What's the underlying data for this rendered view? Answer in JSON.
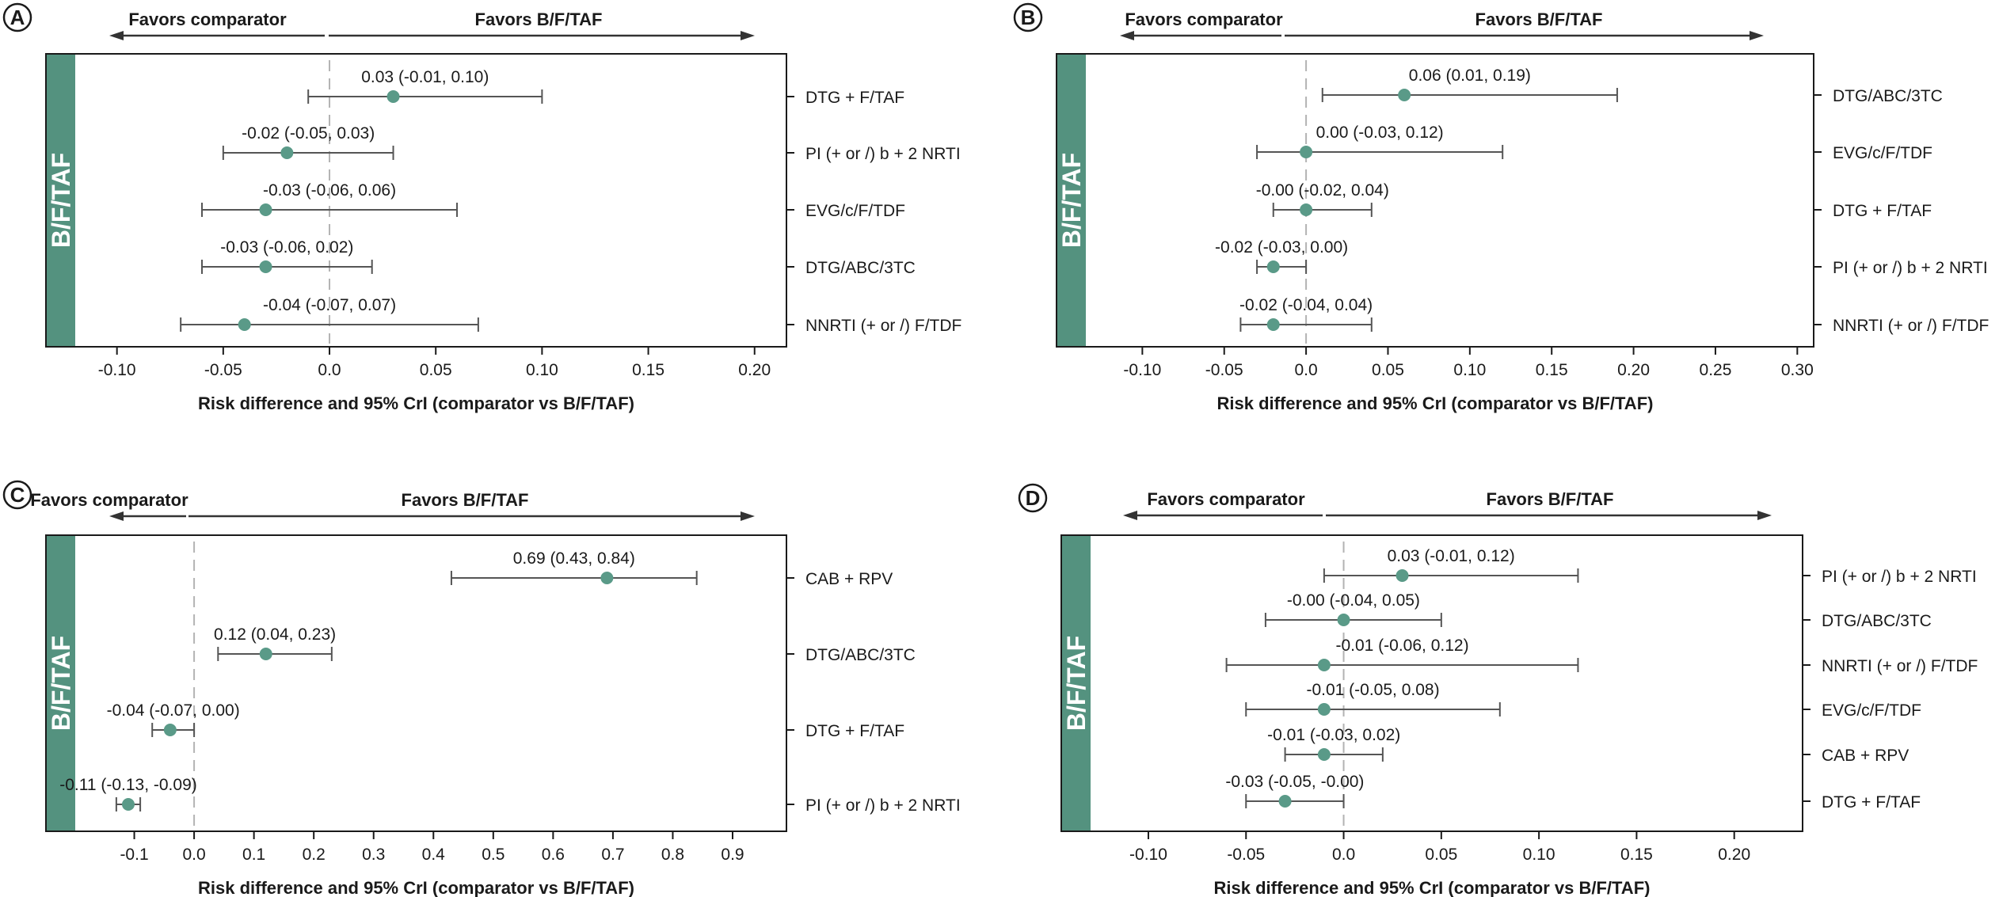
{
  "chart_data": [
    {
      "type": "forest",
      "panel_letter": "A",
      "band_label": "B/F/TAF",
      "xlabel": "Risk difference and 95% CrI (comparator vs B/F/TAF)",
      "left_arrow_label": "Favors comparator",
      "right_arrow_label": "Favors B/F/TAF",
      "xlim": [
        -0.12,
        0.215
      ],
      "ticks": [
        -0.1,
        -0.05,
        0.0,
        0.05,
        0.1,
        0.15,
        0.2
      ],
      "tick_labels": [
        "-0.10",
        "-0.05",
        "0.0",
        "0.05",
        "0.10",
        "0.15",
        "0.20"
      ],
      "rows": [
        {
          "label": "DTG + F/TAF",
          "estimate": 0.03,
          "lower": -0.01,
          "upper": 0.1,
          "text": "0.03 (-0.01, 0.10)"
        },
        {
          "label": "PI (+ or /) b + 2 NRTI",
          "estimate": -0.02,
          "lower": -0.05,
          "upper": 0.03,
          "text": "-0.02 (-0.05, 0.03)"
        },
        {
          "label": "EVG/c/F/TDF",
          "estimate": -0.03,
          "lower": -0.06,
          "upper": 0.06,
          "text": "-0.03 (-0.06, 0.06)"
        },
        {
          "label": "DTG/ABC/3TC",
          "estimate": -0.03,
          "lower": -0.06,
          "upper": 0.02,
          "text": "-0.03 (-0.06, 0.02)"
        },
        {
          "label": "NNRTI (+ or /) F/TDF",
          "estimate": -0.04,
          "lower": -0.07,
          "upper": 0.07,
          "text": "-0.04 (-0.07, 0.07)"
        }
      ]
    },
    {
      "type": "forest",
      "panel_letter": "B",
      "band_label": "B/F/TAF",
      "xlabel": "Risk difference and 95% CrI (comparator vs B/F/TAF)",
      "left_arrow_label": "Favors comparator",
      "right_arrow_label": "Favors B/F/TAF",
      "xlim": [
        -0.135,
        0.31
      ],
      "ticks": [
        -0.1,
        -0.05,
        0.0,
        0.05,
        0.1,
        0.15,
        0.2,
        0.25,
        0.3
      ],
      "tick_labels": [
        "-0.10",
        "-0.05",
        "0.0",
        "0.05",
        "0.10",
        "0.15",
        "0.20",
        "0.25",
        "0.30"
      ],
      "rows": [
        {
          "label": "DTG/ABC/3TC",
          "estimate": 0.06,
          "lower": 0.01,
          "upper": 0.19,
          "text": "0.06 (0.01, 0.19)"
        },
        {
          "label": "EVG/c/F/TDF",
          "estimate": 0.0,
          "lower": -0.03,
          "upper": 0.12,
          "text": "0.00 (-0.03, 0.12)"
        },
        {
          "label": "DTG + F/TAF",
          "estimate": 0.0,
          "lower": -0.02,
          "upper": 0.04,
          "text": "-0.00 (-0.02, 0.04)"
        },
        {
          "label": "PI (+ or /) b + 2 NRTI",
          "estimate": -0.02,
          "lower": -0.03,
          "upper": 0.0,
          "text": "-0.02 (-0.03, 0.00)"
        },
        {
          "label": "NNRTI (+ or /) F/TDF",
          "estimate": -0.02,
          "lower": -0.04,
          "upper": 0.04,
          "text": "-0.02 (-0.04, 0.04)"
        }
      ]
    },
    {
      "type": "forest",
      "panel_letter": "C",
      "band_label": "B/F/TAF",
      "xlabel": "Risk difference and 95% CrI (comparator vs B/F/TAF)",
      "left_arrow_label": "Favors comparator",
      "right_arrow_label": "Favors B/F/TAF",
      "xlim": [
        -0.2,
        0.99
      ],
      "ticks": [
        -0.1,
        0.0,
        0.1,
        0.2,
        0.3,
        0.4,
        0.5,
        0.6,
        0.7,
        0.8,
        0.9
      ],
      "tick_labels": [
        "-0.1",
        "0.0",
        "0.1",
        "0.2",
        "0.3",
        "0.4",
        "0.5",
        "0.6",
        "0.7",
        "0.8",
        "0.9"
      ],
      "rows": [
        {
          "label": "CAB + RPV",
          "estimate": 0.69,
          "lower": 0.43,
          "upper": 0.84,
          "text": "0.69 (0.43, 0.84)"
        },
        {
          "label": "DTG/ABC/3TC",
          "estimate": 0.12,
          "lower": 0.04,
          "upper": 0.23,
          "text": "0.12 (0.04, 0.23)"
        },
        {
          "label": "DTG + F/TAF",
          "estimate": -0.04,
          "lower": -0.07,
          "upper": 0.0,
          "text": "-0.04 (-0.07, 0.00)"
        },
        {
          "label": "PI (+ or /) b + 2 NRTI",
          "estimate": -0.11,
          "lower": -0.13,
          "upper": -0.09,
          "text": "-0.11 (-0.13, -0.09)"
        }
      ]
    },
    {
      "type": "forest",
      "panel_letter": "D",
      "band_label": "B/F/TAF",
      "xlabel": "Risk difference and 95% CrI (comparator vs B/F/TAF)",
      "left_arrow_label": "Favors comparator",
      "right_arrow_label": "Favors B/F/TAF",
      "xlim": [
        -0.13,
        0.235
      ],
      "ticks": [
        -0.1,
        -0.05,
        0.0,
        0.05,
        0.1,
        0.15,
        0.2
      ],
      "tick_labels": [
        "-0.10",
        "-0.05",
        "0.0",
        "0.05",
        "0.10",
        "0.15",
        "0.20"
      ],
      "rows": [
        {
          "label": "PI (+ or /) b + 2 NRTI",
          "estimate": 0.03,
          "lower": -0.01,
          "upper": 0.12,
          "text": "0.03 (-0.01, 0.12)"
        },
        {
          "label": "DTG/ABC/3TC",
          "estimate": 0.0,
          "lower": -0.04,
          "upper": 0.05,
          "text": "-0.00 (-0.04, 0.05)"
        },
        {
          "label": "NNRTI (+ or /) F/TDF",
          "estimate": -0.01,
          "lower": -0.06,
          "upper": 0.12,
          "text": "-0.01 (-0.06, 0.12)"
        },
        {
          "label": "EVG/c/F/TDF",
          "estimate": -0.01,
          "lower": -0.05,
          "upper": 0.08,
          "text": "-0.01 (-0.05, 0.08)"
        },
        {
          "label": "CAB + RPV",
          "estimate": -0.01,
          "lower": -0.03,
          "upper": 0.02,
          "text": "-0.01 (-0.03, 0.02)"
        },
        {
          "label": "DTG + F/TAF",
          "estimate": -0.03,
          "lower": -0.05,
          "upper": 0.0,
          "text": "-0.03 (-0.05, -0.00)"
        }
      ]
    }
  ],
  "colors": {
    "band": "#54927f",
    "point": "#5a9a88",
    "whisker": "#555555",
    "frame": "#1a1a1a",
    "zero_line": "#b3b3b3",
    "arrow": "#333333"
  }
}
